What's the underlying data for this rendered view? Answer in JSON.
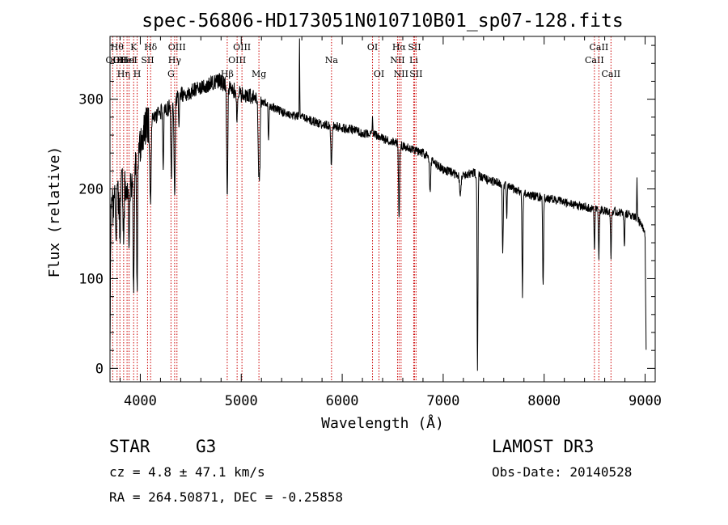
{
  "chart_data": {
    "type": "line",
    "title": "spec-56806-HD173051N010710B01_sp07-128.fits",
    "xlabel": "Wavelength (Å)",
    "ylabel": "Flux (relative)",
    "xlim": [
      3700,
      9100
    ],
    "ylim": [
      -15,
      370
    ],
    "x_ticks": [
      {
        "value": 4000,
        "label": "4000"
      },
      {
        "value": 5000,
        "label": "5000"
      },
      {
        "value": 6000,
        "label": "6000"
      },
      {
        "value": 7000,
        "label": "7000"
      },
      {
        "value": 8000,
        "label": "8000"
      },
      {
        "value": 9000,
        "label": "9000"
      }
    ],
    "y_ticks": [
      {
        "value": 0,
        "label": "0"
      },
      {
        "value": 100,
        "label": "100"
      },
      {
        "value": 200,
        "label": "200"
      },
      {
        "value": 300,
        "label": "300"
      }
    ],
    "continuum": [
      [
        3700,
        5
      ],
      [
        3705,
        120
      ],
      [
        3715,
        210
      ],
      [
        3740,
        200
      ],
      [
        3780,
        190
      ],
      [
        3830,
        205
      ],
      [
        3860,
        200
      ],
      [
        3880,
        200
      ],
      [
        3920,
        215
      ],
      [
        3960,
        230
      ],
      [
        4010,
        255
      ],
      [
        4060,
        270
      ],
      [
        4120,
        278
      ],
      [
        4200,
        285
      ],
      [
        4280,
        290
      ],
      [
        4350,
        300
      ],
      [
        4420,
        305
      ],
      [
        4500,
        308
      ],
      [
        4600,
        312
      ],
      [
        4700,
        318
      ],
      [
        4780,
        320
      ],
      [
        4850,
        317
      ],
      [
        4920,
        310
      ],
      [
        5000,
        305
      ],
      [
        5100,
        303
      ],
      [
        5200,
        298
      ],
      [
        5300,
        292
      ],
      [
        5400,
        286
      ],
      [
        5500,
        282
      ],
      [
        5600,
        280
      ],
      [
        5700,
        276
      ],
      [
        5800,
        272
      ],
      [
        5900,
        270
      ],
      [
        6000,
        268
      ],
      [
        6100,
        266
      ],
      [
        6200,
        262
      ],
      [
        6300,
        262
      ],
      [
        6400,
        256
      ],
      [
        6500,
        253
      ],
      [
        6600,
        248
      ],
      [
        6700,
        244
      ],
      [
        6800,
        240
      ],
      [
        6900,
        230
      ],
      [
        7000,
        222
      ],
      [
        7100,
        217
      ],
      [
        7200,
        215
      ],
      [
        7300,
        218
      ],
      [
        7400,
        212
      ],
      [
        7500,
        208
      ],
      [
        7600,
        205
      ],
      [
        7700,
        200
      ],
      [
        7800,
        195
      ],
      [
        7900,
        192
      ],
      [
        8000,
        190
      ],
      [
        8100,
        188
      ],
      [
        8200,
        185
      ],
      [
        8300,
        182
      ],
      [
        8400,
        180
      ],
      [
        8500,
        178
      ],
      [
        8600,
        176
      ],
      [
        8700,
        175
      ],
      [
        8800,
        172
      ],
      [
        8900,
        170
      ],
      [
        8960,
        160
      ],
      [
        9000,
        150
      ],
      [
        9010,
        20
      ]
    ],
    "absorption_features": [
      {
        "x": 3730,
        "depth": 35,
        "width": 6
      },
      {
        "x": 3760,
        "depth": 35,
        "width": 6
      },
      {
        "x": 3798,
        "depth": 60,
        "width": 6
      },
      {
        "x": 3835,
        "depth": 70,
        "width": 6
      },
      {
        "x": 3889,
        "depth": 70,
        "width": 7
      },
      {
        "x": 3934,
        "depth": 150,
        "width": 7
      },
      {
        "x": 3969,
        "depth": 150,
        "width": 7
      },
      {
        "x": 4102,
        "depth": 90,
        "width": 8
      },
      {
        "x": 4227,
        "depth": 60,
        "width": 6
      },
      {
        "x": 4308,
        "depth": 80,
        "width": 8
      },
      {
        "x": 4340,
        "depth": 110,
        "width": 8
      },
      {
        "x": 4384,
        "depth": 30,
        "width": 6
      },
      {
        "x": 4861,
        "depth": 120,
        "width": 8
      },
      {
        "x": 4957,
        "depth": 30,
        "width": 6
      },
      {
        "x": 5172,
        "depth": 75,
        "width": 8
      },
      {
        "x": 5183,
        "depth": 70,
        "width": 6
      },
      {
        "x": 5270,
        "depth": 35,
        "width": 6
      },
      {
        "x": 5893,
        "depth": 45,
        "width": 8
      },
      {
        "x": 6563,
        "depth": 85,
        "width": 7
      },
      {
        "x": 6870,
        "depth": 35,
        "width": 8
      },
      {
        "x": 7170,
        "depth": 20,
        "width": 10
      },
      {
        "x": 7340,
        "depth": 220,
        "width": 6
      },
      {
        "x": 7590,
        "depth": 80,
        "width": 6
      },
      {
        "x": 7630,
        "depth": 35,
        "width": 6
      },
      {
        "x": 7785,
        "depth": 115,
        "width": 6
      },
      {
        "x": 7990,
        "depth": 100,
        "width": 6
      },
      {
        "x": 8498,
        "depth": 45,
        "width": 6
      },
      {
        "x": 8542,
        "depth": 55,
        "width": 6
      },
      {
        "x": 8662,
        "depth": 50,
        "width": 6
      },
      {
        "x": 8795,
        "depth": 35,
        "width": 6
      }
    ],
    "emission_features": [
      {
        "x": 5577,
        "height": 85,
        "width": 3
      },
      {
        "x": 6300,
        "height": 20,
        "width": 3
      },
      {
        "x": 8920,
        "height": 45,
        "width": 4
      }
    ],
    "line_markers": [
      {
        "x": 3727,
        "label": "OII",
        "row": 2
      },
      {
        "x": 3770,
        "label": "Hθ",
        "row": 1
      },
      {
        "x": 3798,
        "label": "OII",
        "row": 2
      },
      {
        "x": 3835,
        "label": "Hη",
        "row": 3
      },
      {
        "x": 3869,
        "label": "HeI",
        "row": 2
      },
      {
        "x": 3889,
        "label": "HeI",
        "row": 2
      },
      {
        "x": 3934,
        "label": "K",
        "row": 1
      },
      {
        "x": 3969,
        "label": "H",
        "row": 3
      },
      {
        "x": 4072,
        "label": "SII",
        "row": 2
      },
      {
        "x": 4102,
        "label": "Hδ",
        "row": 1
      },
      {
        "x": 4304,
        "label": "G",
        "row": 3
      },
      {
        "x": 4340,
        "label": "Hγ",
        "row": 2
      },
      {
        "x": 4363,
        "label": "OIII",
        "row": 1
      },
      {
        "x": 4861,
        "label": "Hβ",
        "row": 3
      },
      {
        "x": 4959,
        "label": "OIII",
        "row": 2
      },
      {
        "x": 5007,
        "label": "OIII",
        "row": 1
      },
      {
        "x": 5175,
        "label": "Mg",
        "row": 3
      },
      {
        "x": 5894,
        "label": "Na",
        "row": 2
      },
      {
        "x": 6300,
        "label": "OI",
        "row": 1
      },
      {
        "x": 6364,
        "label": "OI",
        "row": 3
      },
      {
        "x": 6548,
        "label": "NII",
        "row": 2
      },
      {
        "x": 6563,
        "label": "Hα",
        "row": 1
      },
      {
        "x": 6583,
        "label": "NII",
        "row": 3
      },
      {
        "x": 6708,
        "label": "Li",
        "row": 2
      },
      {
        "x": 6716,
        "label": "SII",
        "row": 1
      },
      {
        "x": 6731,
        "label": "SII",
        "row": 3
      },
      {
        "x": 8498,
        "label": "CaII",
        "row": 2
      },
      {
        "x": 8542,
        "label": "CaII",
        "row": 1
      },
      {
        "x": 8662,
        "label": "CaII",
        "row": 3
      }
    ]
  },
  "info": {
    "class_label": "STAR",
    "subclass": "G3",
    "survey": "LAMOST DR3",
    "redshift": "cz = 4.8 ± 47.1 km/s",
    "obs_date": "Obs-Date: 20140528",
    "coordinates": "RA = 264.50871, DEC =  -0.25858"
  }
}
